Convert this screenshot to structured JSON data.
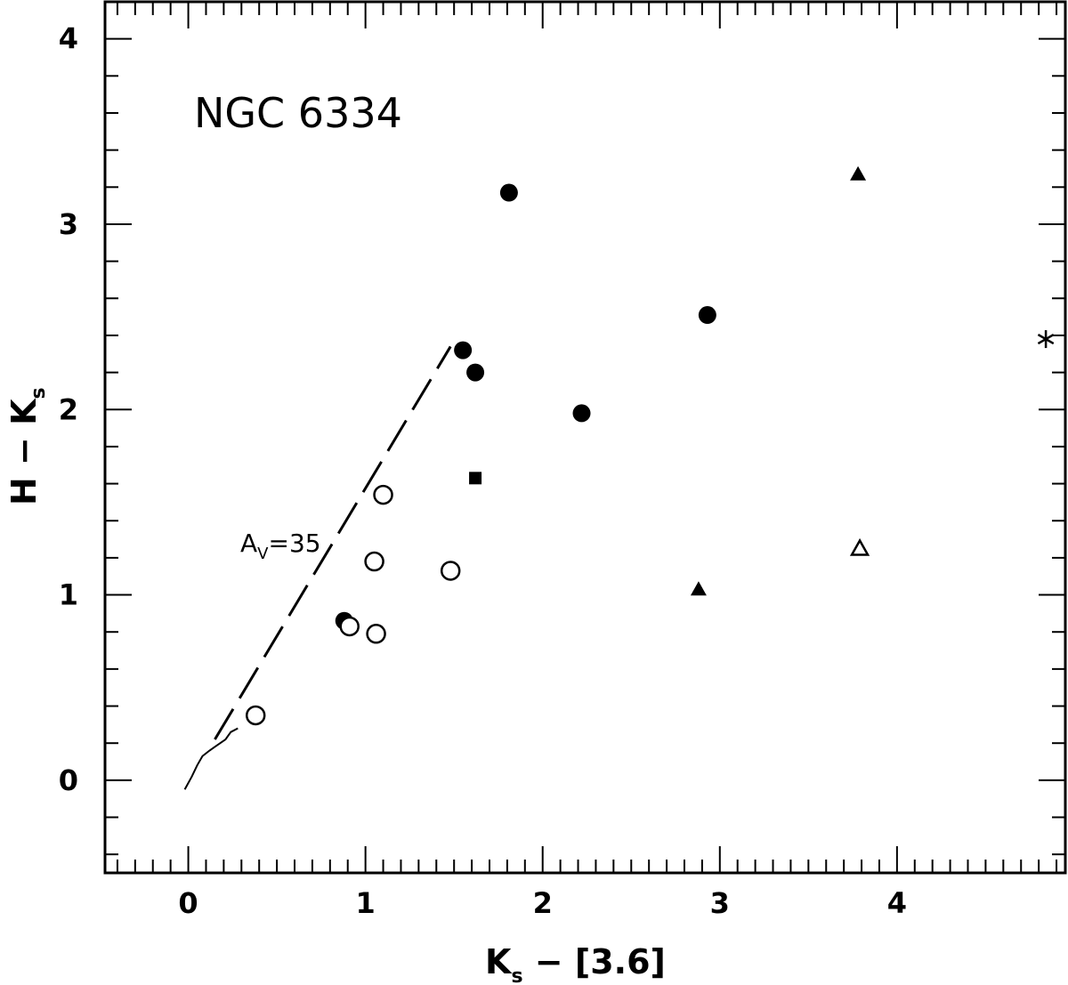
{
  "chart_data": {
    "type": "scatter",
    "title": "NGC 6334",
    "xlabel": {
      "main": "K",
      "sub": "s",
      "rest": " − [3.6]"
    },
    "ylabel": {
      "main": "H − K",
      "sub": "s"
    },
    "xlim": [
      -0.47,
      4.95
    ],
    "ylim": [
      -0.5,
      4.2
    ],
    "x_ticks": [
      "0",
      "1",
      "2",
      "3",
      "4"
    ],
    "y_ticks": [
      "0",
      "1",
      "2",
      "3",
      "4"
    ],
    "grid": false,
    "annotation": {
      "main": "A",
      "sub": "V",
      "rest": "=35"
    },
    "series": [
      {
        "marker": "filled-circle",
        "points": [
          [
            0.88,
            0.86
          ],
          [
            1.55,
            2.32
          ],
          [
            1.62,
            2.2
          ],
          [
            1.81,
            3.17
          ],
          [
            2.22,
            1.98
          ],
          [
            2.93,
            2.51
          ]
        ]
      },
      {
        "marker": "open-circle",
        "points": [
          [
            0.38,
            0.35
          ],
          [
            0.91,
            0.83
          ],
          [
            1.06,
            0.79
          ],
          [
            1.05,
            1.18
          ],
          [
            1.1,
            1.54
          ],
          [
            1.48,
            1.13
          ]
        ]
      },
      {
        "marker": "filled-square",
        "points": [
          [
            1.62,
            1.63
          ]
        ]
      },
      {
        "marker": "filled-triangle",
        "points": [
          [
            2.88,
            1.03
          ],
          [
            3.78,
            3.27
          ]
        ]
      },
      {
        "marker": "open-triangle",
        "points": [
          [
            3.79,
            1.25
          ]
        ]
      },
      {
        "marker": "asterisk",
        "points": [
          [
            4.84,
            2.38
          ]
        ]
      }
    ],
    "reddening_vector": {
      "style": "dashed",
      "points": [
        [
          0.15,
          0.22
        ],
        [
          1.48,
          2.34
        ]
      ]
    },
    "intrinsic_locus": {
      "style": "solid",
      "points": [
        [
          -0.02,
          -0.05
        ],
        [
          0.02,
          0.02
        ],
        [
          0.05,
          0.08
        ],
        [
          0.08,
          0.13
        ],
        [
          0.12,
          0.16
        ],
        [
          0.15,
          0.18
        ],
        [
          0.18,
          0.2
        ],
        [
          0.21,
          0.22
        ],
        [
          0.24,
          0.26
        ],
        [
          0.28,
          0.28
        ]
      ]
    }
  }
}
